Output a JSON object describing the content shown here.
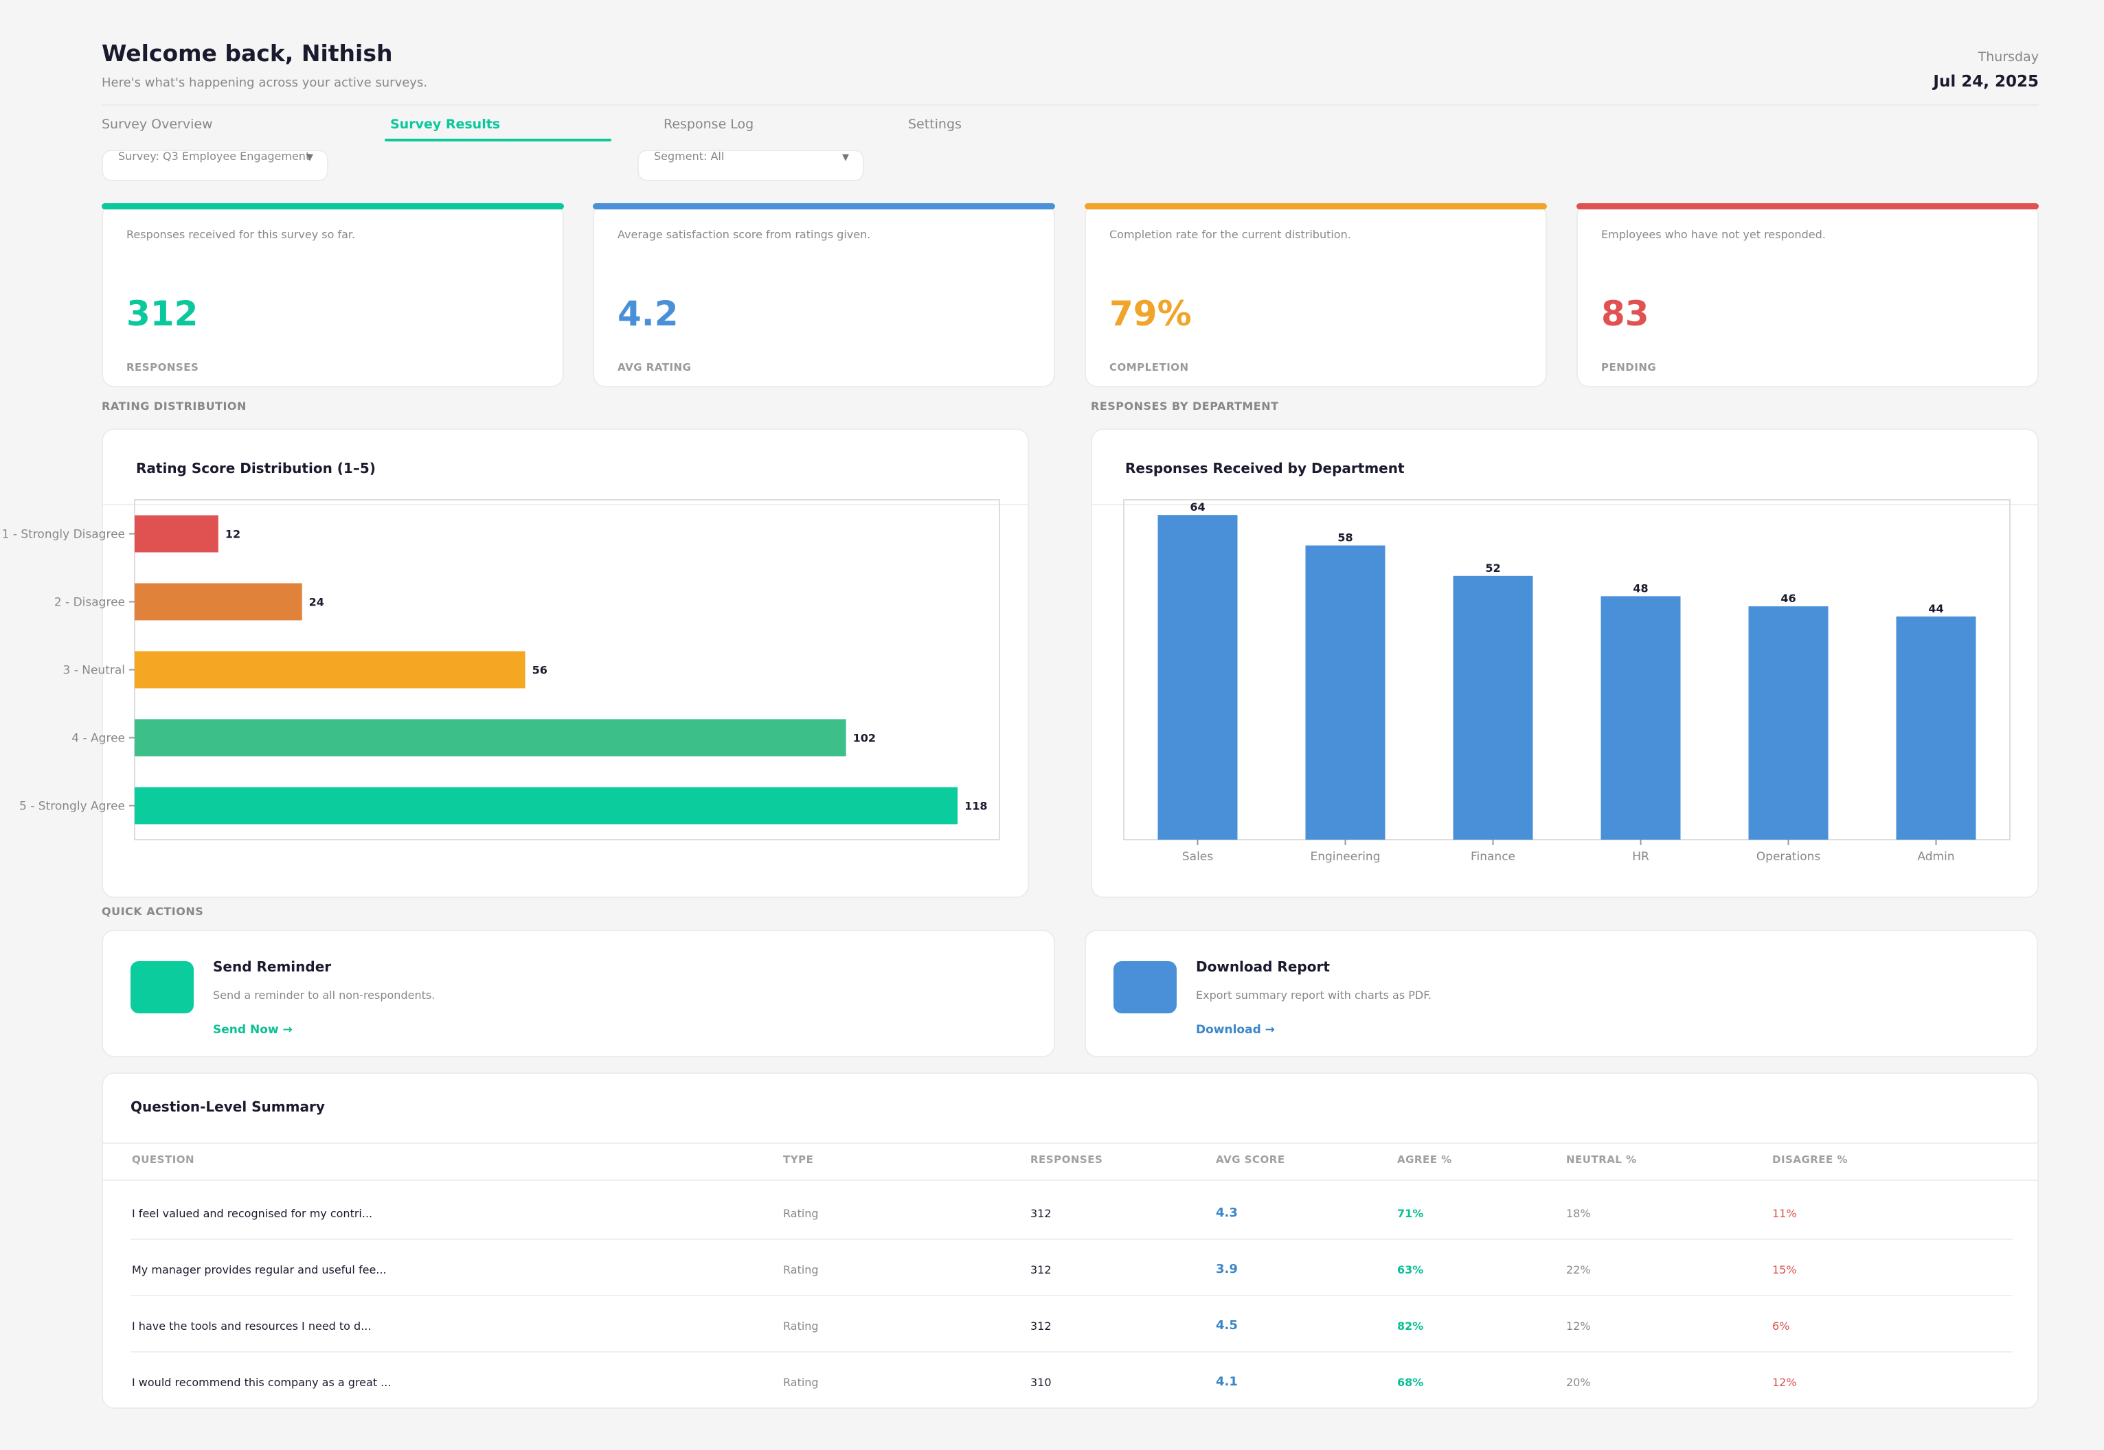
{
  "header": {
    "title": "Welcome back, Nithish",
    "subtitle": "Here's what's happening across your active surveys.",
    "day": "Thursday",
    "date": "Jul 24, 2025"
  },
  "tabs": [
    {
      "label": "Survey Overview",
      "active": false
    },
    {
      "label": "Survey Results",
      "active": true
    },
    {
      "label": "Response Log",
      "active": false
    },
    {
      "label": "Settings",
      "active": false
    }
  ],
  "filters": {
    "survey": "Survey: Q3 Employee Engagement",
    "segment": "Segment: All"
  },
  "kpis": [
    {
      "desc": "Responses received for this survey so far.",
      "value": "312",
      "caption": "RESPONSES",
      "color": "#0bc89c"
    },
    {
      "desc": "Average satisfaction score from ratings given.",
      "value": "4.2",
      "caption": "AVG RATING",
      "color": "#4a90d9"
    },
    {
      "desc": "Completion rate for the current distribution.",
      "value": "79%",
      "caption": "COMPLETION",
      "color": "#f0a429"
    },
    {
      "desc": "Employees who have not yet responded.",
      "value": "83",
      "caption": "PENDING",
      "color": "#e05252"
    }
  ],
  "sections": {
    "rating": "RATING DISTRIBUTION",
    "department": "RESPONSES BY DEPARTMENT",
    "quick_actions": "QUICK ACTIONS"
  },
  "chart_data": [
    {
      "type": "bar",
      "orientation": "horizontal",
      "title": "Rating Score Distribution (1–5)",
      "categories": [
        "1 - Strongly Disagree",
        "2 - Disagree",
        "3 - Neutral",
        "4 - Agree",
        "5 - Strongly Agree"
      ],
      "values": [
        12,
        24,
        56,
        102,
        118
      ],
      "colors": [
        "#e05252",
        "#e0823a",
        "#f5a623",
        "#3dbf8a",
        "#0bcc9c"
      ],
      "xlim": [
        0,
        124
      ],
      "grid": false,
      "legend": "none"
    },
    {
      "type": "bar",
      "orientation": "vertical",
      "title": "Responses Received by Department",
      "categories": [
        "Sales",
        "Engineering",
        "Finance",
        "HR",
        "Operations",
        "Admin"
      ],
      "values": [
        64,
        58,
        52,
        48,
        46,
        44
      ],
      "color": "#4a90d9",
      "ylim": [
        0,
        67
      ],
      "grid": false,
      "legend": "none"
    }
  ],
  "quick_actions": [
    {
      "title": "Send Reminder",
      "desc": "Send a reminder to all non-respondents.",
      "link": "Send Now →",
      "color": "#0bcc9c",
      "icon": "send-icon"
    },
    {
      "title": "Download Report",
      "desc": "Export summary report with charts as PDF.",
      "link": "Download →",
      "color": "#4a90d9",
      "icon": "download-icon"
    }
  ],
  "table": {
    "title": "Question-Level Summary",
    "headers": [
      "QUESTION",
      "TYPE",
      "RESPONSES",
      "AVG SCORE",
      "AGREE %",
      "NEUTRAL %",
      "DISAGREE %"
    ],
    "rows": [
      [
        "I feel valued and recognised for my contri...",
        "Rating",
        "312",
        "4.3",
        "71%",
        "18%",
        "11%"
      ],
      [
        "My manager provides regular and useful fee...",
        "Rating",
        "312",
        "3.9",
        "63%",
        "22%",
        "15%"
      ],
      [
        "I have the tools and resources I need to d...",
        "Rating",
        "312",
        "4.5",
        "82%",
        "12%",
        "6%"
      ],
      [
        "I would recommend this company as a great ...",
        "Rating",
        "310",
        "4.1",
        "68%",
        "20%",
        "12%"
      ]
    ],
    "colors": {
      "avg": "#3a86c8",
      "agree": "#0bbf95",
      "neutral": "#888888",
      "disagree": "#d9534f"
    }
  }
}
